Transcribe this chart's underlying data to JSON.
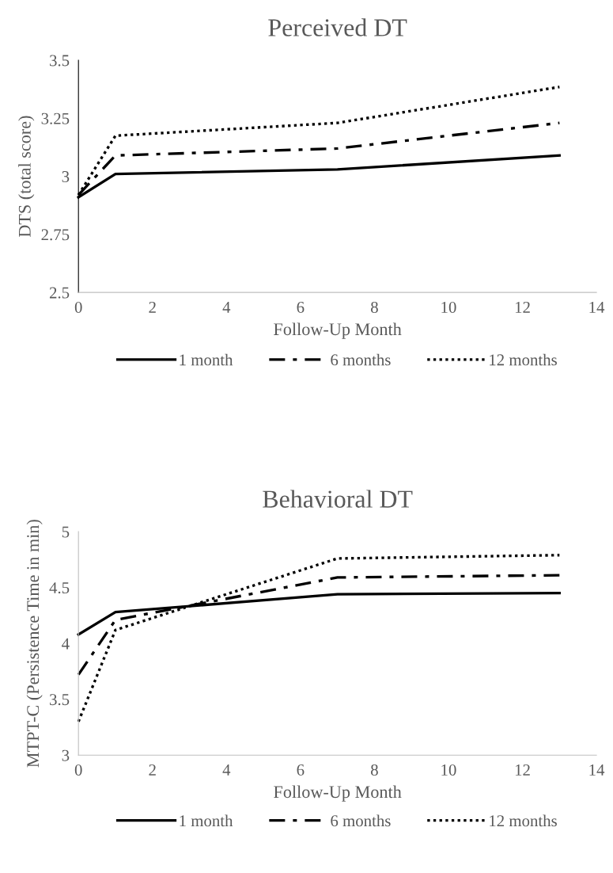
{
  "chart_data": [
    {
      "type": "line",
      "title": "Perceived DT",
      "xlabel": "Follow-Up Month",
      "ylabel": "DTS (total score)",
      "x": [
        0,
        1,
        7,
        13
      ],
      "series": [
        {
          "name": "1 month",
          "color": "#000000",
          "line_style": "solid",
          "values": [
            2.91,
            3.01,
            3.03,
            3.09
          ]
        },
        {
          "name": "6 months",
          "color": "#000000",
          "line_style": "dashdot",
          "values": [
            2.92,
            3.09,
            3.12,
            3.23
          ]
        },
        {
          "name": "12 months",
          "color": "#000000",
          "line_style": "dotted",
          "values": [
            2.92,
            3.175,
            3.23,
            3.385
          ]
        }
      ],
      "xlim": [
        0,
        14
      ],
      "xticks": [
        0,
        2,
        4,
        6,
        8,
        10,
        12,
        14
      ],
      "ylim": [
        2.5,
        3.5
      ],
      "yticks": [
        2.5,
        2.75,
        3,
        3.25,
        3.5
      ],
      "grid": false,
      "legend": "bottom",
      "marker": "none"
    },
    {
      "type": "line",
      "title": "Behavioral DT",
      "xlabel": "Follow-Up Month",
      "ylabel": "MTPT-C (Persistence Time in min)",
      "x": [
        0,
        1,
        7,
        13
      ],
      "series": [
        {
          "name": "1 month",
          "color": "#000000",
          "line_style": "solid",
          "values": [
            4.08,
            4.28,
            4.44,
            4.45
          ]
        },
        {
          "name": "6 months",
          "color": "#000000",
          "line_style": "dashdot",
          "values": [
            3.72,
            4.21,
            4.59,
            4.61
          ]
        },
        {
          "name": "12 months",
          "color": "#000000",
          "line_style": "dotted",
          "values": [
            3.3,
            4.12,
            4.76,
            4.79
          ]
        }
      ],
      "xlim": [
        0,
        14
      ],
      "xticks": [
        0,
        2,
        4,
        6,
        8,
        10,
        12,
        14
      ],
      "ylim": [
        3,
        5
      ],
      "yticks": [
        3,
        3.5,
        4,
        4.5,
        5
      ],
      "grid": false,
      "legend": "bottom",
      "marker": "none"
    }
  ]
}
